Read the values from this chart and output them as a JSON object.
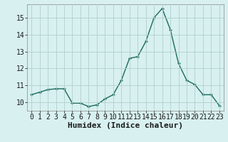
{
  "x": [
    0,
    1,
    2,
    3,
    4,
    5,
    6,
    7,
    8,
    9,
    10,
    11,
    12,
    13,
    14,
    15,
    16,
    17,
    18,
    19,
    20,
    21,
    22,
    23
  ],
  "y": [
    10.45,
    10.6,
    10.75,
    10.8,
    10.8,
    9.95,
    9.95,
    9.75,
    9.85,
    10.2,
    10.45,
    11.3,
    12.6,
    12.7,
    13.6,
    15.0,
    15.55,
    14.3,
    12.3,
    11.3,
    11.05,
    10.45,
    10.45,
    9.8
  ],
  "xlabel": "Humidex (Indice chaleur)",
  "ylim": [
    9.5,
    15.8
  ],
  "xlim": [
    -0.5,
    23.5
  ],
  "yticks": [
    10,
    11,
    12,
    13,
    14,
    15
  ],
  "xticks": [
    0,
    1,
    2,
    3,
    4,
    5,
    6,
    7,
    8,
    9,
    10,
    11,
    12,
    13,
    14,
    15,
    16,
    17,
    18,
    19,
    20,
    21,
    22,
    23
  ],
  "line_color": "#1a6b5a",
  "marker_color": "#1a6b5a",
  "bg_color": "#d8f0f0",
  "grid_color": "#b0d0cc",
  "xlabel_fontsize": 8,
  "tick_fontsize": 7
}
